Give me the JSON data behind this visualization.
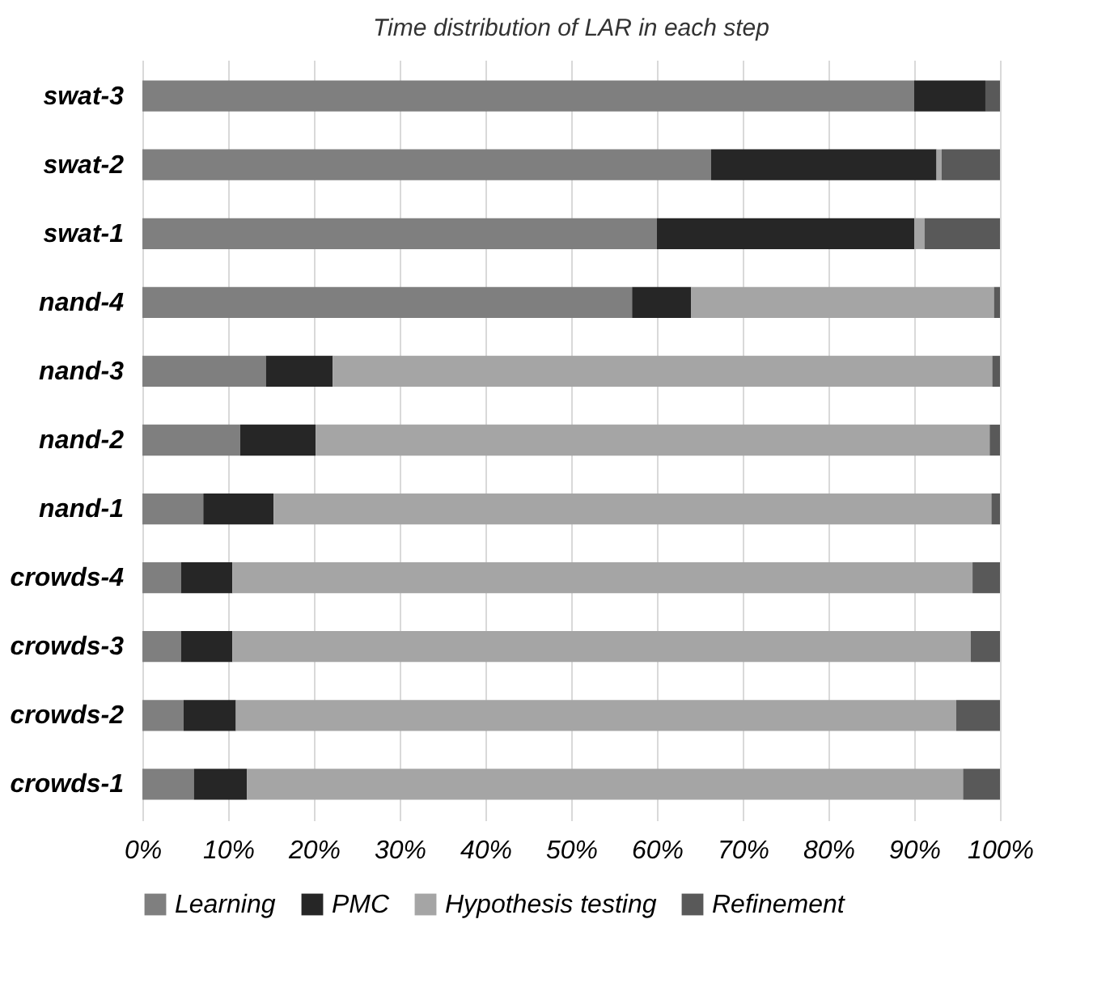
{
  "chart_data": {
    "type": "bar",
    "orientation": "horizontal",
    "stacked": true,
    "title": "Time distribution of LAR in each step",
    "categories": [
      "swat-3",
      "swat-2",
      "swat-1",
      "nand-4",
      "nand-3",
      "nand-2",
      "nand-1",
      "crowds-4",
      "crowds-3",
      "crowds-2",
      "crowds-1"
    ],
    "series": [
      {
        "name": "Learning",
        "color": "#7f7f7f",
        "values": [
          90,
          66.3,
          60,
          57.1,
          14.4,
          11.4,
          7.1,
          4.5,
          4.5,
          4.8,
          6.0
        ]
      },
      {
        "name": "PMC",
        "color": "#262626",
        "values": [
          8.3,
          26.3,
          30,
          6.9,
          7.8,
          8.8,
          8.2,
          6.0,
          6.0,
          6.1,
          6.2
        ]
      },
      {
        "name": "Hypothesis testing",
        "color": "#a5a5a5",
        "values": [
          0,
          0.6,
          1.2,
          35.3,
          76.9,
          78.6,
          83.7,
          86.3,
          86.1,
          84.0,
          83.5
        ]
      },
      {
        "name": "Refinement",
        "color": "#595959",
        "values": [
          1.7,
          6.8,
          8.8,
          0.7,
          0.9,
          1.2,
          1.0,
          3.2,
          3.4,
          5.1,
          4.3
        ]
      }
    ],
    "xlim": [
      0,
      100
    ],
    "xticks": [
      {
        "value": 0,
        "label": "0%"
      },
      {
        "value": 10,
        "label": "10%"
      },
      {
        "value": 20,
        "label": "20%"
      },
      {
        "value": 30,
        "label": "30%"
      },
      {
        "value": 40,
        "label": "40%"
      },
      {
        "value": 50,
        "label": "50%"
      },
      {
        "value": 60,
        "label": "60%"
      },
      {
        "value": 70,
        "label": "70%"
      },
      {
        "value": 80,
        "label": "80%"
      },
      {
        "value": 90,
        "label": "90%"
      },
      {
        "value": 100,
        "label": "100%"
      }
    ],
    "grid": "x",
    "legend": "bottom"
  }
}
